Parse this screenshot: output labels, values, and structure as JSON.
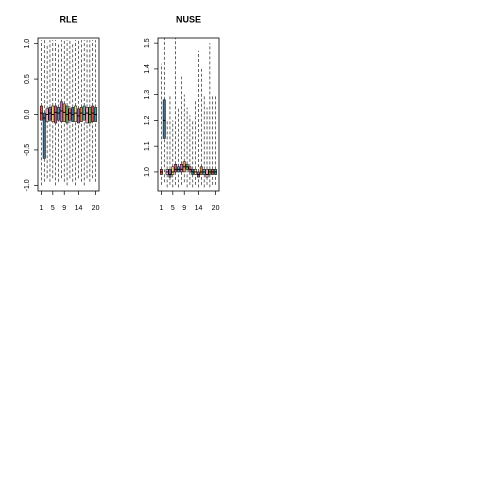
{
  "chart_data": [
    {
      "type": "boxplot",
      "title": "RLE",
      "x": [
        1,
        2,
        3,
        4,
        5,
        6,
        7,
        8,
        9,
        10,
        11,
        12,
        13,
        14,
        15,
        16,
        17,
        18,
        19,
        20
      ],
      "xlim": [
        -0.2,
        21.2
      ],
      "xticks": [
        1,
        5,
        9,
        14,
        20
      ],
      "ylim": [
        -1.08,
        1.08
      ],
      "yticks": [
        {
          "value": -1,
          "label": "-1.0"
        },
        -0.5,
        {
          "value": 0,
          "label": "0.0"
        },
        0.5,
        {
          "value": 1,
          "label": "1.0"
        }
      ],
      "whisker_low": [
        -1.0,
        -0.95,
        -0.9,
        -0.95,
        -0.9,
        -1.0,
        -0.95,
        -0.9,
        -0.95,
        -1.0,
        -0.9,
        -0.95,
        -1.0,
        -0.9,
        -0.95,
        -1.0,
        -0.9,
        -0.95,
        -0.9,
        -0.95
      ],
      "q1": [
        -0.08,
        -0.62,
        -0.1,
        -0.08,
        -0.1,
        -0.12,
        -0.08,
        -0.1,
        -0.1,
        -0.12,
        -0.08,
        -0.1,
        -0.1,
        -0.12,
        -0.1,
        -0.08,
        -0.12,
        -0.12,
        -0.1,
        -0.1
      ],
      "median": [
        0.02,
        -0.05,
        0,
        0.02,
        0,
        0.03,
        0.02,
        0.05,
        0.03,
        0,
        0.02,
        0,
        0.02,
        -0.02,
        0.02,
        0,
        0.02,
        0,
        0.02,
        0
      ],
      "q3": [
        0.12,
        0.02,
        0.08,
        0.1,
        0.12,
        0.12,
        0.1,
        0.18,
        0.15,
        0.12,
        0.08,
        0.1,
        0.12,
        0.08,
        0.1,
        0.12,
        0.1,
        0.1,
        0.12,
        0.1
      ],
      "whisker_high": [
        1.05,
        1.05,
        1.0,
        1.05,
        1.05,
        1.05,
        1.0,
        1.05,
        1.05,
        1.05,
        1.05,
        1.0,
        1.05,
        1.05,
        1.05,
        1.05,
        1.05,
        1.05,
        1.05,
        1.05
      ],
      "colors": [
        "#e0504d",
        "#3b6e8f",
        "#e8b8c8",
        "#8a5a9a",
        "#f0d060",
        "#d44a80",
        "#5aa0a0",
        "#c070c0",
        "#f09050",
        "#60a060",
        "#e06060",
        "#4070a0",
        "#f0e080",
        "#a060a0",
        "#e08040",
        "#60b0b0",
        "#f0a0c0",
        "#80a040",
        "#d05050",
        "#4a90a0"
      ]
    },
    {
      "type": "boxplot",
      "title": "NUSE",
      "x": [
        1,
        2,
        3,
        4,
        5,
        6,
        7,
        8,
        9,
        10,
        11,
        12,
        13,
        14,
        15,
        16,
        17,
        18,
        19,
        20
      ],
      "xlim": [
        -0.2,
        21.2
      ],
      "xticks": [
        1,
        5,
        9,
        14,
        20
      ],
      "ylim": [
        0.926,
        1.52
      ],
      "yticks": [
        {
          "value": 1,
          "label": "1.0"
        },
        1.1,
        1.2,
        1.3,
        1.4,
        1.5
      ],
      "whisker_low": [
        0.95,
        0.96,
        0.94,
        0.95,
        0.94,
        0.95,
        0.94,
        0.95,
        0.96,
        0.94,
        0.95,
        0.94,
        0.95,
        0.94,
        0.95,
        0.94,
        0.95,
        0.94,
        0.95,
        0.95
      ],
      "q1": [
        0.99,
        1.13,
        0.99,
        0.98,
        0.99,
        1.0,
        1.0,
        1.0,
        1.0,
        1.01,
        1.0,
        0.99,
        0.99,
        0.98,
        0.99,
        0.99,
        0.98,
        0.99,
        0.99,
        0.99
      ],
      "median": [
        1.0,
        1.2,
        1.0,
        0.99,
        1.0,
        1.01,
        1.01,
        1.01,
        1.02,
        1.02,
        1.01,
        1.0,
        1.0,
        0.99,
        1.0,
        1.0,
        0.99,
        1.0,
        1.0,
        1.0
      ],
      "q3": [
        1.01,
        1.28,
        1.01,
        1.01,
        1.02,
        1.03,
        1.02,
        1.03,
        1.04,
        1.03,
        1.02,
        1.01,
        1.01,
        1.0,
        1.02,
        1.01,
        1.01,
        1.01,
        1.01,
        1.01
      ],
      "whisker_high": [
        1.42,
        1.52,
        1.2,
        1.3,
        1.2,
        1.52,
        1.25,
        1.37,
        1.3,
        1.25,
        1.22,
        1.2,
        1.28,
        1.47,
        1.4,
        1.3,
        1.25,
        1.5,
        1.3,
        1.3
      ],
      "colors": [
        "#e0504d",
        "#3b6e8f",
        "#e8b8c8",
        "#8a5a9a",
        "#f0d060",
        "#d44a80",
        "#5aa0a0",
        "#c070c0",
        "#f09050",
        "#60a060",
        "#e06060",
        "#4070a0",
        "#f0e080",
        "#a060a0",
        "#e08040",
        "#60b0b0",
        "#f0a0c0",
        "#80a040",
        "#d05050",
        "#4a90a0"
      ]
    }
  ]
}
